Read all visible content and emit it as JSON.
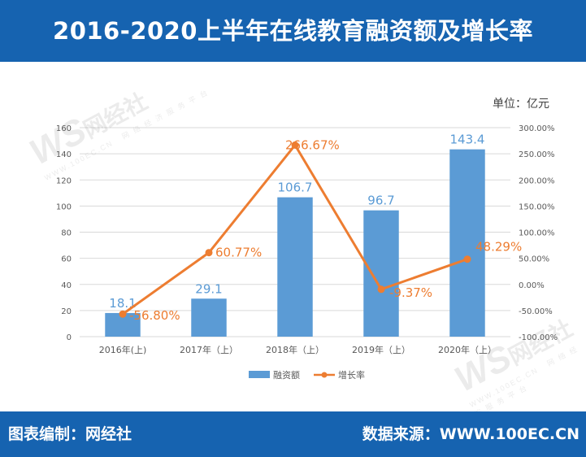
{
  "header": {
    "title": "2016-2020上半年在线教育融资额及增长率"
  },
  "footer": {
    "left": "图表编制：网经社",
    "right": "数据来源：WWW.100EC.CN"
  },
  "watermark": {
    "logo": "WS",
    "brand": "网经社",
    "url": "WWW.100EC.CN",
    "tagline": "网 络 经 济 服 务 平 台"
  },
  "chart_data": {
    "type": "bar",
    "unit_label": "单位：亿元",
    "categories": [
      "2016年(上)",
      "2017年（上）",
      "2018年（上）",
      "2019年（上）",
      "2020年（上）"
    ],
    "series": [
      {
        "name": "融资额",
        "type": "bar",
        "axis": "left",
        "color": "#5b9bd5",
        "values": [
          18.1,
          29.1,
          106.7,
          96.7,
          143.4
        ],
        "labels": [
          "18.1",
          "29.1",
          "106.7",
          "96.7",
          "143.4"
        ]
      },
      {
        "name": "增长率",
        "type": "line",
        "axis": "right",
        "color": "#ed7d31",
        "values": [
          -56.8,
          60.77,
          266.67,
          -9.37,
          48.29
        ],
        "labels": [
          "-56.80%",
          "60.77%",
          "266.67%",
          "-9.37%",
          "48.29%"
        ]
      }
    ],
    "y_left": {
      "min": 0,
      "max": 160,
      "ticks": [
        "0",
        "20",
        "40",
        "60",
        "80",
        "100",
        "120",
        "140",
        "160"
      ]
    },
    "y_right": {
      "min": -100,
      "max": 300,
      "ticks": [
        "-100.00%",
        "-50.00%",
        "0.00%",
        "50.00%",
        "100.00%",
        "150.00%",
        "200.00%",
        "250.00%",
        "300.00%"
      ]
    },
    "grid": true,
    "legend_position": "bottom"
  }
}
